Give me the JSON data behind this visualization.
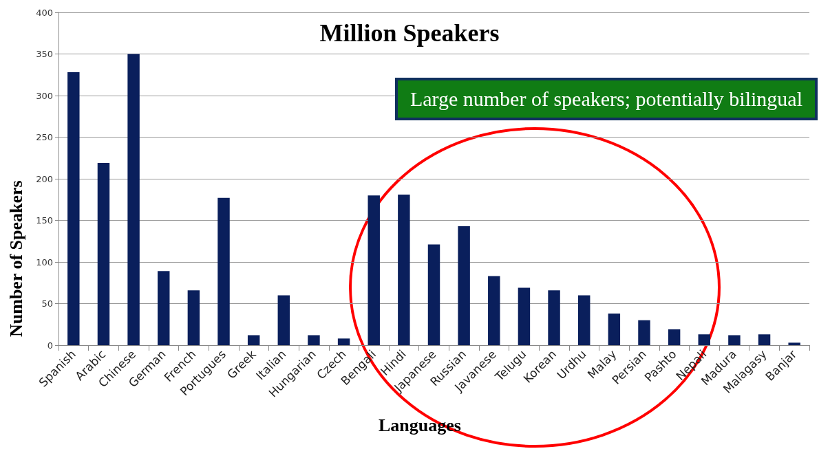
{
  "chart_data": {
    "type": "bar",
    "title": "Million Speakers",
    "xlabel": "Languages",
    "ylabel": "Number of Speakers",
    "categories": [
      "Spanish",
      "Arabic",
      "Chinese",
      "German",
      "French",
      "Portugues",
      "Greek",
      "Italian",
      "Hungarian",
      "Czech",
      "Bengali",
      "Hindi",
      "Japanese",
      "Russian",
      "Javanese",
      "Telugu",
      "Korean",
      "Urdhu",
      "Malay",
      "Persian",
      "Pashto",
      "Nepali",
      "Madura",
      "Malagasy",
      "Banjar"
    ],
    "values": [
      328,
      219,
      350,
      89,
      66,
      177,
      12,
      60,
      12,
      8,
      180,
      181,
      121,
      143,
      83,
      69,
      66,
      60,
      38,
      30,
      19,
      13,
      12,
      13,
      3
    ],
    "color": "#0a1f5c",
    "ylim": [
      0,
      400
    ],
    "yticks": [
      0,
      50,
      100,
      150,
      200,
      250,
      300,
      350,
      400
    ],
    "grid": "y",
    "annotations": [
      "Large number of speakers; potentially bilingual"
    ]
  }
}
